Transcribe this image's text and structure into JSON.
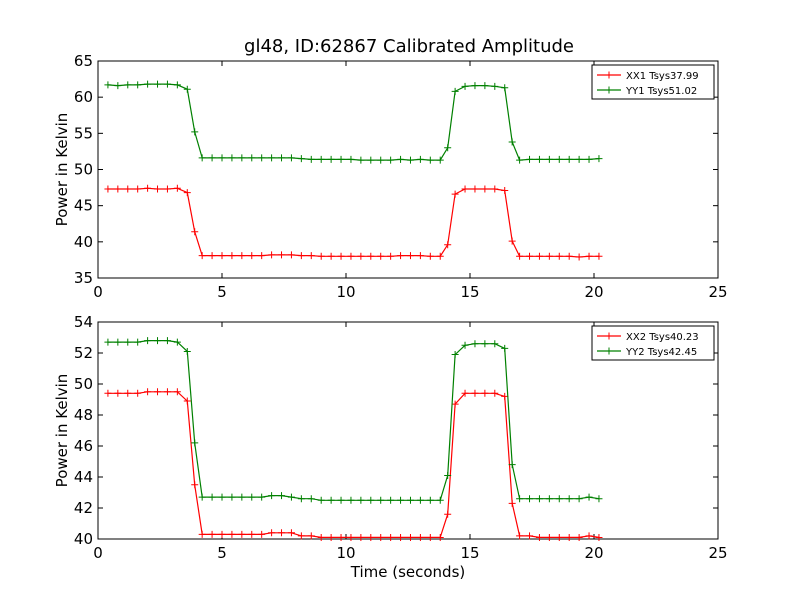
{
  "chart_data": {
    "type": "line",
    "title": "gl48, ID:62867 Calibrated Amplitude",
    "panels": [
      {
        "ylabel": "Power in Kelvin",
        "xlabel": "",
        "xlim": [
          0,
          25
        ],
        "ylim": [
          35,
          65
        ],
        "xticks": [
          "0",
          "5",
          "10",
          "15",
          "20",
          "25"
        ],
        "yticks": [
          "35",
          "40",
          "45",
          "50",
          "55",
          "60",
          "65"
        ],
        "grid": false,
        "legend_position": "top-right",
        "x": [
          0.4,
          0.8,
          1.2,
          1.6,
          2.0,
          2.4,
          2.8,
          3.2,
          3.6,
          3.9,
          4.2,
          4.6,
          5.0,
          5.4,
          5.8,
          6.2,
          6.6,
          7.0,
          7.4,
          7.8,
          8.2,
          8.6,
          9.0,
          9.4,
          9.8,
          10.2,
          10.6,
          11.0,
          11.4,
          11.8,
          12.2,
          12.6,
          13.0,
          13.4,
          13.8,
          14.1,
          14.4,
          14.8,
          15.2,
          15.6,
          16.0,
          16.4,
          16.7,
          17.0,
          17.4,
          17.8,
          18.2,
          18.6,
          19.0,
          19.4,
          19.8,
          20.2
        ],
        "series": [
          {
            "name": "XX1 Tsys37.99",
            "color": "#ff0000",
            "values": [
              47.3,
              47.3,
              47.3,
              47.3,
              47.4,
              47.3,
              47.3,
              47.4,
              46.8,
              41.4,
              38.1,
              38.1,
              38.1,
              38.1,
              38.1,
              38.1,
              38.1,
              38.2,
              38.2,
              38.2,
              38.1,
              38.1,
              38.0,
              38.0,
              38.0,
              38.0,
              38.0,
              38.0,
              38.0,
              38.0,
              38.1,
              38.1,
              38.1,
              38.0,
              38.0,
              39.6,
              46.6,
              47.3,
              47.3,
              47.3,
              47.3,
              47.1,
              40.1,
              38.0,
              38.0,
              38.0,
              38.0,
              38.0,
              38.0,
              37.9,
              38.0,
              38.0
            ]
          },
          {
            "name": "YY1 Tsys51.02",
            "color": "#008000",
            "values": [
              61.7,
              61.6,
              61.7,
              61.7,
              61.8,
              61.8,
              61.8,
              61.7,
              61.1,
              55.2,
              51.6,
              51.6,
              51.6,
              51.6,
              51.6,
              51.6,
              51.6,
              51.6,
              51.6,
              51.6,
              51.5,
              51.4,
              51.4,
              51.4,
              51.4,
              51.4,
              51.3,
              51.3,
              51.3,
              51.3,
              51.4,
              51.3,
              51.4,
              51.3,
              51.3,
              53.0,
              60.8,
              61.5,
              61.6,
              61.6,
              61.5,
              61.3,
              53.8,
              51.3,
              51.4,
              51.4,
              51.4,
              51.4,
              51.4,
              51.4,
              51.4,
              51.5
            ]
          }
        ]
      },
      {
        "ylabel": "Power in Kelvin",
        "xlabel": "Time (seconds)",
        "xlim": [
          0,
          25
        ],
        "ylim": [
          40,
          54
        ],
        "xticks": [
          "0",
          "5",
          "10",
          "15",
          "20",
          "25"
        ],
        "yticks": [
          "40",
          "42",
          "44",
          "46",
          "48",
          "50",
          "52",
          "54"
        ],
        "grid": false,
        "legend_position": "top-right",
        "x": [
          0.4,
          0.8,
          1.2,
          1.6,
          2.0,
          2.4,
          2.8,
          3.2,
          3.6,
          3.9,
          4.2,
          4.6,
          5.0,
          5.4,
          5.8,
          6.2,
          6.6,
          7.0,
          7.4,
          7.8,
          8.2,
          8.6,
          9.0,
          9.4,
          9.8,
          10.2,
          10.6,
          11.0,
          11.4,
          11.8,
          12.2,
          12.6,
          13.0,
          13.4,
          13.8,
          14.1,
          14.4,
          14.8,
          15.2,
          15.6,
          16.0,
          16.4,
          16.7,
          17.0,
          17.4,
          17.8,
          18.2,
          18.6,
          19.0,
          19.4,
          19.8,
          20.2
        ],
        "series": [
          {
            "name": "XX2 Tsys40.23",
            "color": "#ff0000",
            "values": [
              49.4,
              49.4,
              49.4,
              49.4,
              49.5,
              49.5,
              49.5,
              49.5,
              48.9,
              43.5,
              40.3,
              40.3,
              40.3,
              40.3,
              40.3,
              40.3,
              40.3,
              40.4,
              40.4,
              40.4,
              40.2,
              40.2,
              40.1,
              40.1,
              40.1,
              40.1,
              40.1,
              40.1,
              40.1,
              40.1,
              40.1,
              40.1,
              40.1,
              40.1,
              40.1,
              41.6,
              48.7,
              49.4,
              49.4,
              49.4,
              49.4,
              49.2,
              42.3,
              40.2,
              40.2,
              40.1,
              40.1,
              40.1,
              40.1,
              40.1,
              40.2,
              40.1
            ]
          },
          {
            "name": "YY2 Tsys42.45",
            "color": "#008000",
            "values": [
              52.7,
              52.7,
              52.7,
              52.7,
              52.8,
              52.8,
              52.8,
              52.7,
              52.1,
              46.2,
              42.7,
              42.7,
              42.7,
              42.7,
              42.7,
              42.7,
              42.7,
              42.8,
              42.8,
              42.7,
              42.6,
              42.6,
              42.5,
              42.5,
              42.5,
              42.5,
              42.5,
              42.5,
              42.5,
              42.5,
              42.5,
              42.5,
              42.5,
              42.5,
              42.5,
              44.1,
              51.9,
              52.5,
              52.6,
              52.6,
              52.6,
              52.3,
              44.8,
              42.6,
              42.6,
              42.6,
              42.6,
              42.6,
              42.6,
              42.6,
              42.7,
              42.6
            ]
          }
        ]
      }
    ]
  }
}
